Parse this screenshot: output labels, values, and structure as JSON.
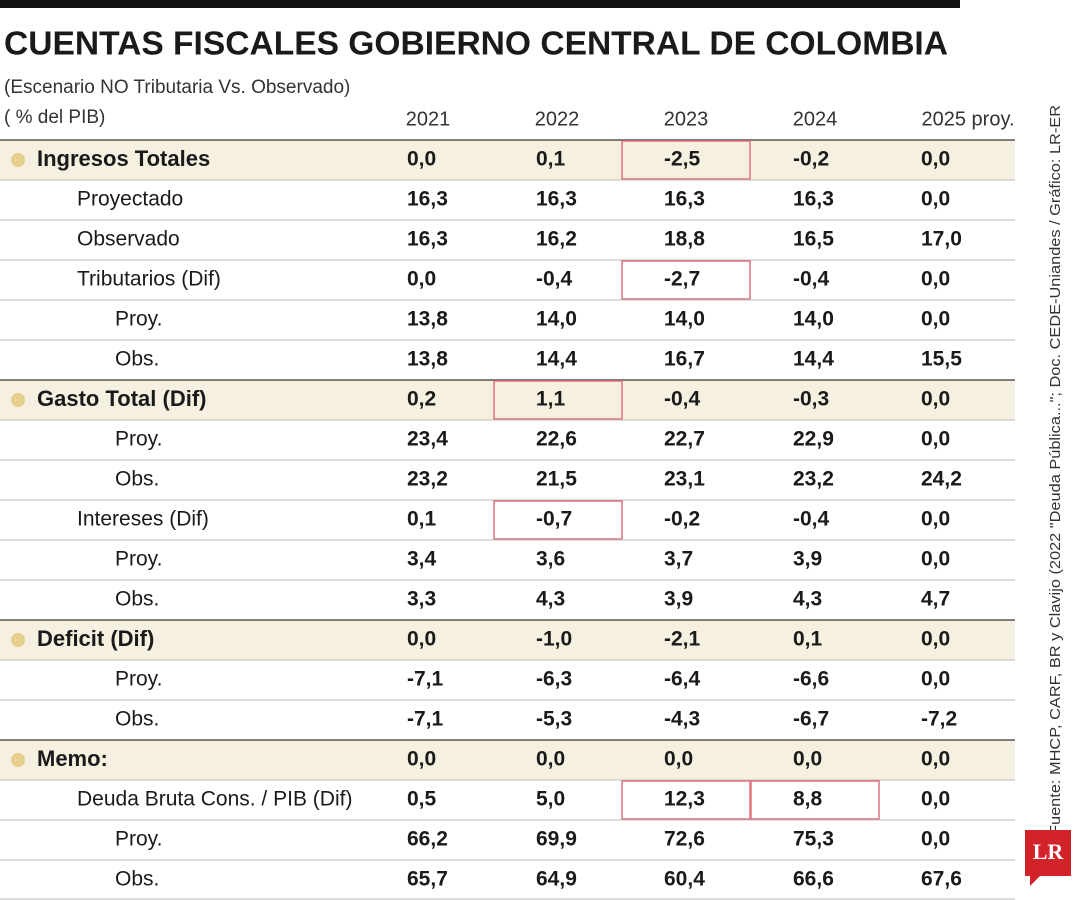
{
  "header": {
    "title": "CUENTAS FISCALES GOBIERNO CENTRAL DE COLOMBIA",
    "subtitle": "(Escenario NO Tributaria Vs.  Observado)",
    "unit": "( % del PIB)"
  },
  "table": {
    "columns": [
      "2021",
      "2022",
      "2023",
      "2024",
      "2025 proy."
    ],
    "rows": [
      {
        "label": "Ingresos Totales",
        "level": 0,
        "values": [
          "0,0",
          "0,1",
          "-2,5",
          "-0,2",
          "0,0"
        ],
        "highlight": [
          2
        ]
      },
      {
        "label": "Proyectado",
        "level": 1,
        "values": [
          "16,3",
          "16,3",
          "16,3",
          "16,3",
          "0,0"
        ]
      },
      {
        "label": "Observado",
        "level": 1,
        "values": [
          "16,3",
          "16,2",
          "18,8",
          "16,5",
          "17,0"
        ]
      },
      {
        "label": "Tributarios (Dif)",
        "level": 1,
        "values": [
          "0,0",
          "-0,4",
          "-2,7",
          "-0,4",
          "0,0"
        ],
        "highlight": [
          2
        ]
      },
      {
        "label": "Proy.",
        "level": 2,
        "values": [
          "13,8",
          "14,0",
          "14,0",
          "14,0",
          "0,0"
        ]
      },
      {
        "label": "Obs.",
        "level": 2,
        "values": [
          "13,8",
          "14,4",
          "16,7",
          "14,4",
          "15,5"
        ]
      },
      {
        "label": "Gasto Total (Dif)",
        "level": 0,
        "values": [
          "0,2",
          "1,1",
          "-0,4",
          "-0,3",
          "0,0"
        ],
        "highlight": [
          1
        ]
      },
      {
        "label": "Proy.",
        "level": 2,
        "values": [
          "23,4",
          "22,6",
          "22,7",
          "22,9",
          "0,0"
        ]
      },
      {
        "label": "Obs.",
        "level": 2,
        "values": [
          "23,2",
          "21,5",
          "23,1",
          "23,2",
          "24,2"
        ]
      },
      {
        "label": "Intereses (Dif)",
        "level": 1,
        "values": [
          "0,1",
          "-0,7",
          "-0,2",
          "-0,4",
          "0,0"
        ],
        "highlight": [
          1
        ]
      },
      {
        "label": "Proy.",
        "level": 2,
        "values": [
          "3,4",
          "3,6",
          "3,7",
          "3,9",
          "0,0"
        ]
      },
      {
        "label": "Obs.",
        "level": 2,
        "values": [
          "3,3",
          "4,3",
          "3,9",
          "4,3",
          "4,7"
        ]
      },
      {
        "label": "Deficit (Dif)",
        "level": 0,
        "values": [
          "0,0",
          "-1,0",
          "-2,1",
          "0,1",
          "0,0"
        ]
      },
      {
        "label": "Proy.",
        "level": 2,
        "values": [
          "-7,1",
          "-6,3",
          "-6,4",
          "-6,6",
          "0,0"
        ]
      },
      {
        "label": "Obs.",
        "level": 2,
        "values": [
          "-7,1",
          "-5,3",
          "-4,3",
          "-6,7",
          "-7,2"
        ]
      },
      {
        "label": "Memo:",
        "level": 0,
        "values": [
          "0,0",
          "0,0",
          "0,0",
          "0,0",
          "0,0"
        ]
      },
      {
        "label": "Deuda Bruta Cons. / PIB (Dif)",
        "level": 1,
        "values": [
          "0,5",
          "5,0",
          "12,3",
          "8,8",
          "0,0"
        ],
        "highlight": [
          2,
          3
        ]
      },
      {
        "label": "Proy.",
        "level": 2,
        "values": [
          "66,2",
          "69,9",
          "72,6",
          "75,3",
          "0,0"
        ]
      },
      {
        "label": "Obs.",
        "level": 2,
        "values": [
          "65,7",
          "64,9",
          "60,4",
          "66,6",
          "67,6"
        ]
      }
    ]
  },
  "source": "Fuente: MHCP, CARF, BR y Clavijo (2022 \"Deuda Pública...\"; Doc. CEDE-Uniandes / Gráfico: LR-ER",
  "logo": "LR"
}
